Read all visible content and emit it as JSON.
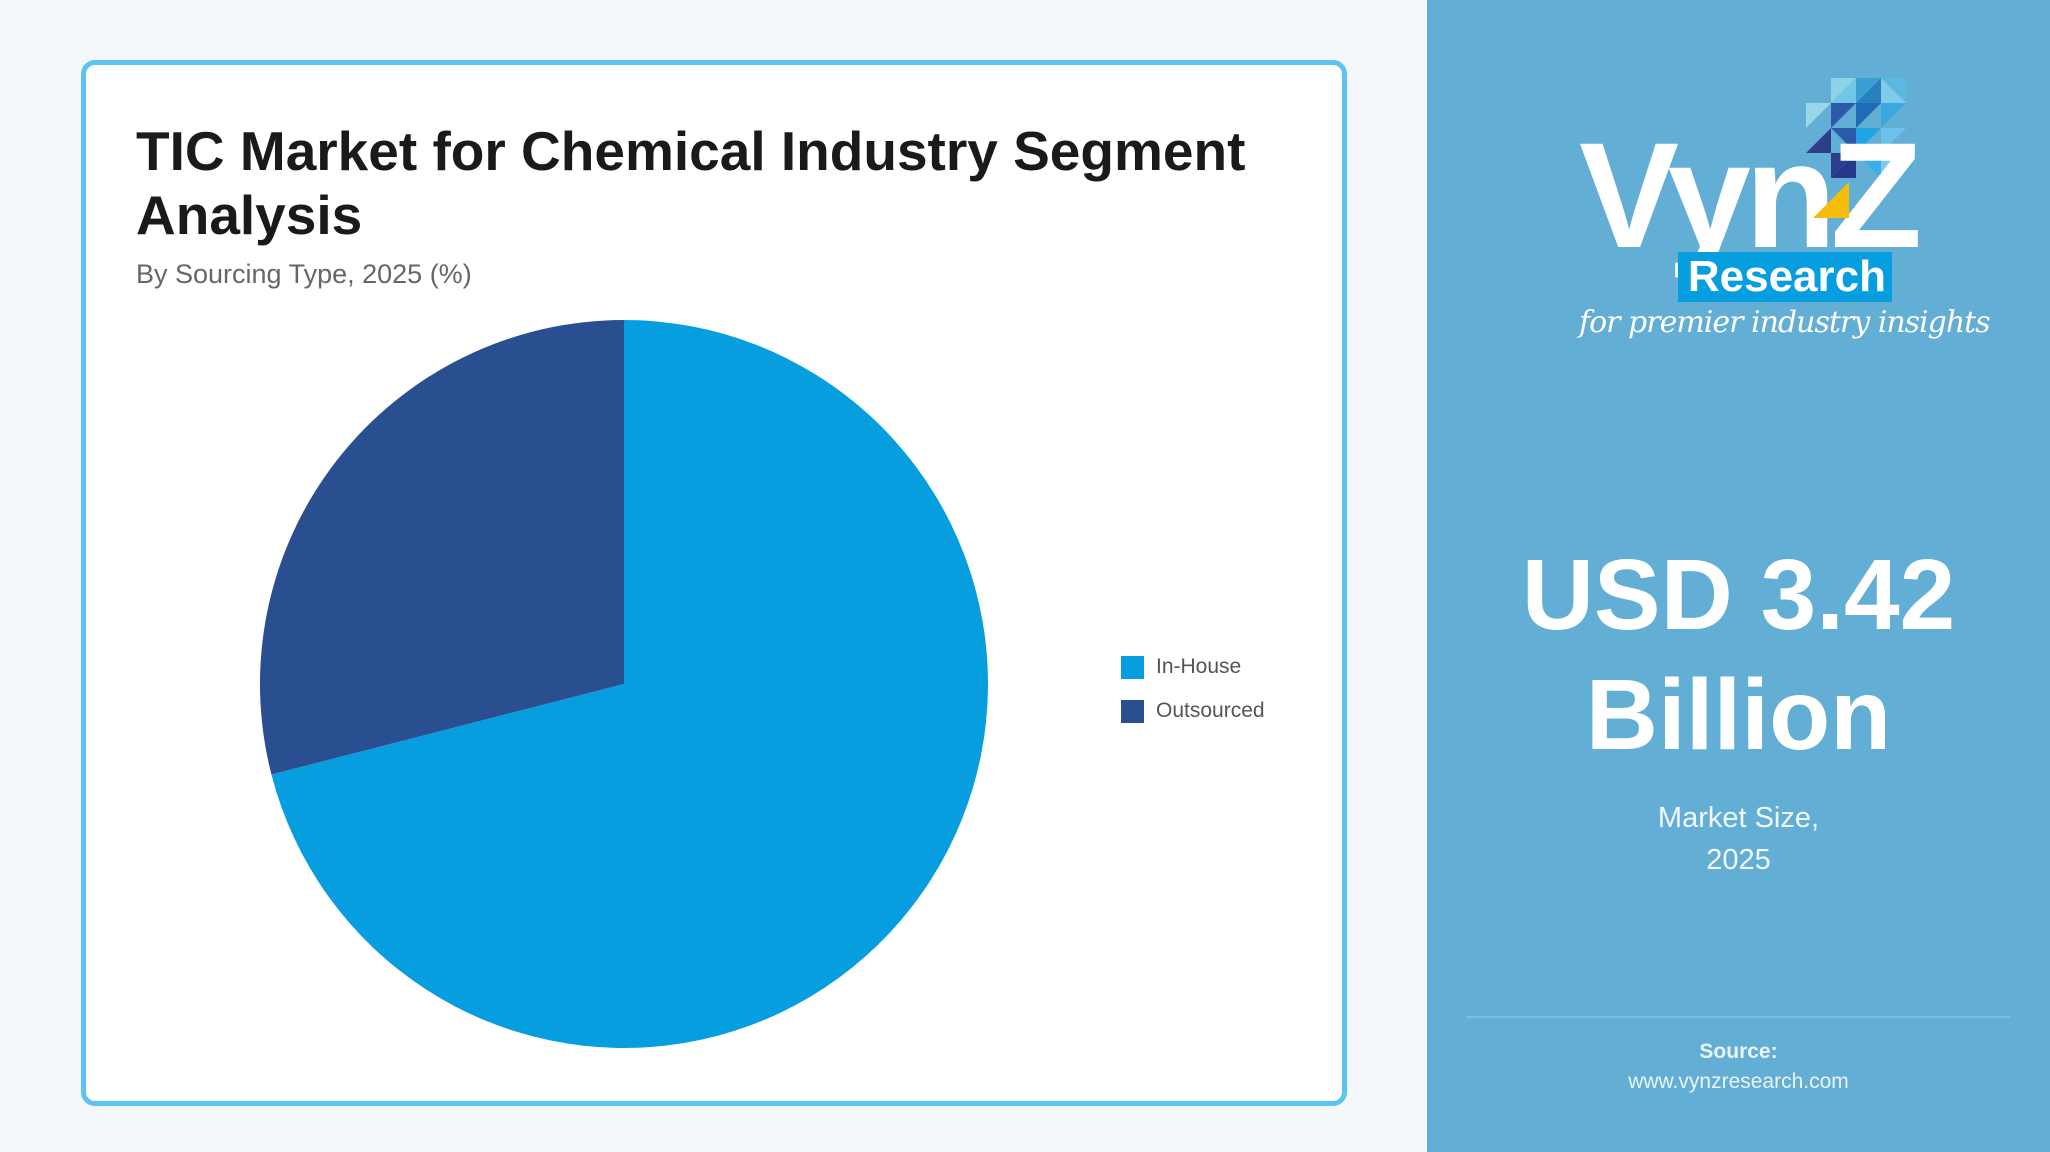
{
  "card": {
    "title": "TIC Market for Chemical Industry Segment Analysis",
    "subtitle": "By Sourcing Type, 2025 (%)"
  },
  "legend": [
    {
      "label": "In-House",
      "color": "#069edf"
    },
    {
      "label": "Outsourced",
      "color": "#294f91"
    }
  ],
  "chart_data": {
    "type": "pie",
    "title": "TIC Market for Chemical Industry Segment Analysis",
    "subtitle": "By Sourcing Type, 2025 (%)",
    "categories": [
      "In-House",
      "Outsourced"
    ],
    "values": [
      71,
      29
    ],
    "colors": [
      "#069edf",
      "#294f91"
    ],
    "start_angle_deg": 0,
    "direction": "clockwise",
    "legend_position": "right",
    "data_labels": false
  },
  "side": {
    "logo": {
      "wordmark": "VynZ",
      "badge": "Research",
      "tagline": "for premier industry insights"
    },
    "market_value": "USD 3.42 Billion",
    "market_value_line1": "USD 3.42",
    "market_value_line2": "Billion",
    "market_label_line1": "Market Size,",
    "market_label_line2": "2025",
    "source_label": "Source:",
    "source_url": "www.vynzresearch.com",
    "background_color": "#62aed5",
    "accent_color": "#5bc4f0"
  }
}
